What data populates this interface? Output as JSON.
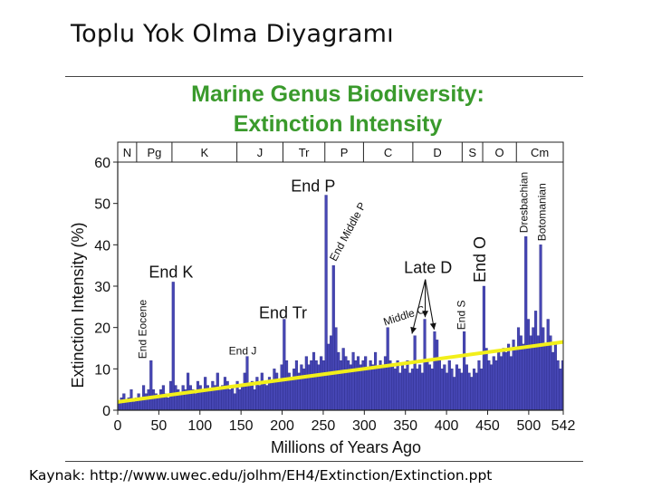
{
  "slide": {
    "title": "Toplu Yok Olma Diyagramı",
    "source": "Kaynak: http://www.uwec.edu/jolhm/EH4/Extinction/Extinction.ppt"
  },
  "chart_data": {
    "type": "bar",
    "title_line1": "Marine Genus Biodiversity:",
    "title_line2": "Extinction Intensity",
    "xlabel": "Millions of Years Ago",
    "ylabel": "Extinction Intensity (%)",
    "xlim": [
      0,
      542
    ],
    "ylim": [
      0,
      60
    ],
    "x_ticks": [
      "0",
      "50",
      "100",
      "150",
      "200",
      "250",
      "300",
      "350",
      "400",
      "450",
      "500",
      "542"
    ],
    "x_tick_values": [
      0,
      50,
      100,
      150,
      200,
      250,
      300,
      350,
      400,
      450,
      500,
      542
    ],
    "y_ticks": [
      "0",
      "10",
      "20",
      "30",
      "40",
      "50",
      "60"
    ],
    "y_tick_values": [
      0,
      10,
      20,
      30,
      40,
      50,
      60
    ],
    "colors": {
      "title": "#3a9a2c",
      "bars": "#4646b4",
      "bar_edge": "#2a2a88",
      "trend": "#f2ef1a"
    },
    "periods": [
      {
        "label": "N",
        "start": 0,
        "end": 23
      },
      {
        "label": "Pg",
        "start": 23,
        "end": 66
      },
      {
        "label": "K",
        "start": 66,
        "end": 145
      },
      {
        "label": "J",
        "start": 145,
        "end": 201
      },
      {
        "label": "Tr",
        "start": 201,
        "end": 252
      },
      {
        "label": "P",
        "start": 252,
        "end": 299
      },
      {
        "label": "C",
        "start": 299,
        "end": 359
      },
      {
        "label": "D",
        "start": 359,
        "end": 419
      },
      {
        "label": "S",
        "start": 419,
        "end": 444
      },
      {
        "label": "O",
        "start": 444,
        "end": 485
      },
      {
        "label": "Cm",
        "start": 485,
        "end": 542
      }
    ],
    "trend_line": {
      "x": [
        0,
        542
      ],
      "y": [
        2,
        16.5
      ]
    },
    "annotations": [
      {
        "text": "End P",
        "x": 252,
        "y": 52
      },
      {
        "text": "End Middle P",
        "x": 262,
        "y": 35
      },
      {
        "text": "End K",
        "x": 66,
        "y": 31
      },
      {
        "text": "End Tr",
        "x": 201,
        "y": 22
      },
      {
        "text": "End J",
        "x": 152,
        "y": 13
      },
      {
        "text": "End Eocene",
        "x": 37,
        "y": 12
      },
      {
        "text": "Middle C",
        "x": 325,
        "y": 20
      },
      {
        "text": "Late D",
        "x": 372,
        "y": 20
      },
      {
        "text": "End S",
        "x": 419,
        "y": 19
      },
      {
        "text": "End O",
        "x": 444,
        "y": 30
      },
      {
        "text": "Dresbachian",
        "x": 495,
        "y": 42
      },
      {
        "text": "Botomanian",
        "x": 517,
        "y": 40
      }
    ],
    "series": [
      {
        "x": [
          0,
          3,
          6,
          9,
          12,
          15,
          18,
          21,
          24,
          27,
          30,
          33,
          36,
          39,
          42,
          45,
          48,
          51,
          54,
          57,
          60,
          63,
          66,
          69,
          72,
          75,
          78,
          81,
          84,
          87,
          90,
          93,
          96,
          99,
          102,
          105,
          108,
          111,
          114,
          117,
          120,
          123,
          126,
          129,
          132,
          135,
          138,
          141,
          144,
          147,
          150,
          153,
          156,
          159,
          162,
          165,
          168,
          171,
          174,
          177,
          180,
          183,
          186,
          189,
          192,
          195,
          198,
          201,
          204,
          207,
          210,
          213,
          216,
          219,
          222,
          225,
          228,
          231,
          234,
          237,
          240,
          243,
          246,
          249,
          252,
          255,
          258,
          261,
          264,
          267,
          270,
          273,
          276,
          279,
          282,
          285,
          288,
          291,
          294,
          297,
          300,
          303,
          306,
          309,
          312,
          315,
          318,
          321,
          324,
          327,
          330,
          333,
          336,
          339,
          342,
          345,
          348,
          351,
          354,
          357,
          360,
          363,
          366,
          369,
          372,
          375,
          378,
          381,
          384,
          387,
          390,
          393,
          396,
          399,
          402,
          405,
          408,
          411,
          414,
          417,
          420,
          423,
          426,
          429,
          432,
          435,
          438,
          441,
          444,
          447,
          450,
          453,
          456,
          459,
          462,
          465,
          468,
          471,
          474,
          477,
          480,
          483,
          486,
          489,
          492,
          495,
          498,
          501,
          504,
          507,
          510,
          513,
          516,
          519,
          522,
          525,
          528,
          531,
          534,
          537,
          540
        ],
        "values": [
          2,
          3,
          4,
          2,
          3,
          5,
          2,
          3,
          4,
          3,
          6,
          4,
          5,
          12,
          5,
          4,
          3,
          5,
          6,
          4,
          3,
          7,
          31,
          6,
          5,
          4,
          6,
          5,
          9,
          6,
          5,
          4,
          7,
          6,
          5,
          8,
          6,
          5,
          7,
          6,
          9,
          5,
          6,
          8,
          7,
          5,
          6,
          4,
          7,
          5,
          6,
          9,
          13,
          6,
          7,
          5,
          8,
          6,
          9,
          7,
          6,
          8,
          7,
          10,
          9,
          7,
          11,
          22,
          12,
          9,
          8,
          10,
          12,
          9,
          11,
          10,
          13,
          11,
          12,
          14,
          12,
          11,
          13,
          12,
          52,
          16,
          18,
          35,
          20,
          14,
          12,
          15,
          13,
          12,
          11,
          14,
          12,
          13,
          11,
          12,
          13,
          10,
          12,
          11,
          14,
          10,
          12,
          11,
          13,
          20,
          12,
          11,
          10,
          12,
          9,
          11,
          10,
          12,
          9,
          10,
          18,
          10,
          11,
          9,
          22,
          12,
          11,
          10,
          19,
          17,
          12,
          10,
          11,
          9,
          12,
          10,
          8,
          11,
          10,
          9,
          19,
          11,
          9,
          8,
          10,
          9,
          12,
          10,
          30,
          15,
          12,
          11,
          13,
          12,
          14,
          13,
          15,
          14,
          16,
          13,
          17,
          15,
          20,
          18,
          16,
          42,
          22,
          18,
          20,
          24,
          18,
          40,
          20,
          16,
          22,
          18,
          14,
          16,
          12,
          10,
          12
        ]
      }
    ]
  }
}
